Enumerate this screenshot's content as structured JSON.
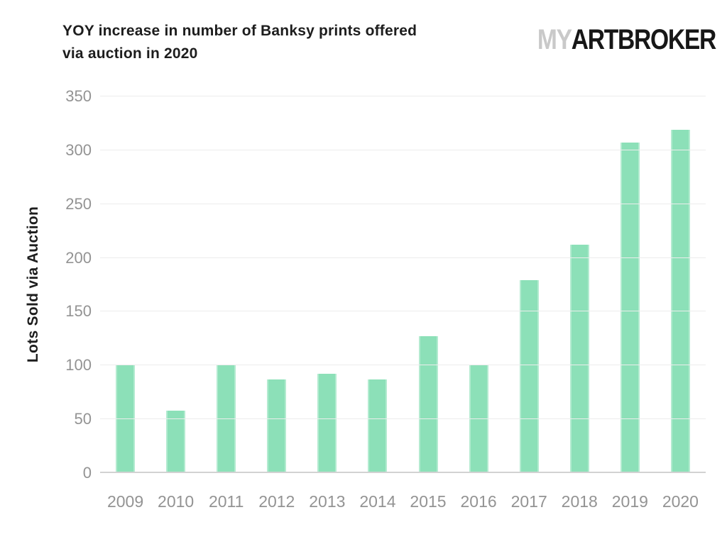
{
  "header": {
    "title_line1": "YOY increase in number of Banksy prints offered",
    "title_line2": "via auction in 2020",
    "logo_light": "MY",
    "logo_bold": "ARTBROKER"
  },
  "chart_data": {
    "type": "bar",
    "title": "YOY increase in number of Banksy prints offered via auction in 2020",
    "xlabel": "",
    "ylabel": "Lots Sold via Auction",
    "categories": [
      "2009",
      "2010",
      "2011",
      "2012",
      "2013",
      "2014",
      "2015",
      "2016",
      "2017",
      "2018",
      "2019",
      "2020"
    ],
    "values": [
      100,
      58,
      100,
      87,
      92,
      87,
      127,
      100,
      179,
      212,
      307,
      319
    ],
    "ylim": [
      0,
      350
    ],
    "y_ticks": [
      "0",
      "50",
      "100",
      "150",
      "200",
      "250",
      "300",
      "350"
    ],
    "grid": "horizontal-only",
    "legend_position": "none",
    "colors": {
      "background": "#ffffff",
      "bar": "#8ce0b8",
      "bar_edge": "#b3ebd0",
      "gridline": "#ececec",
      "baseline": "#d2d2d2",
      "tick_label": "#939393",
      "axis_title": "#1d1d1d",
      "title": "#1d1d1d",
      "logo_light": "#c9c9c9",
      "logo_bold": "#171717"
    }
  }
}
